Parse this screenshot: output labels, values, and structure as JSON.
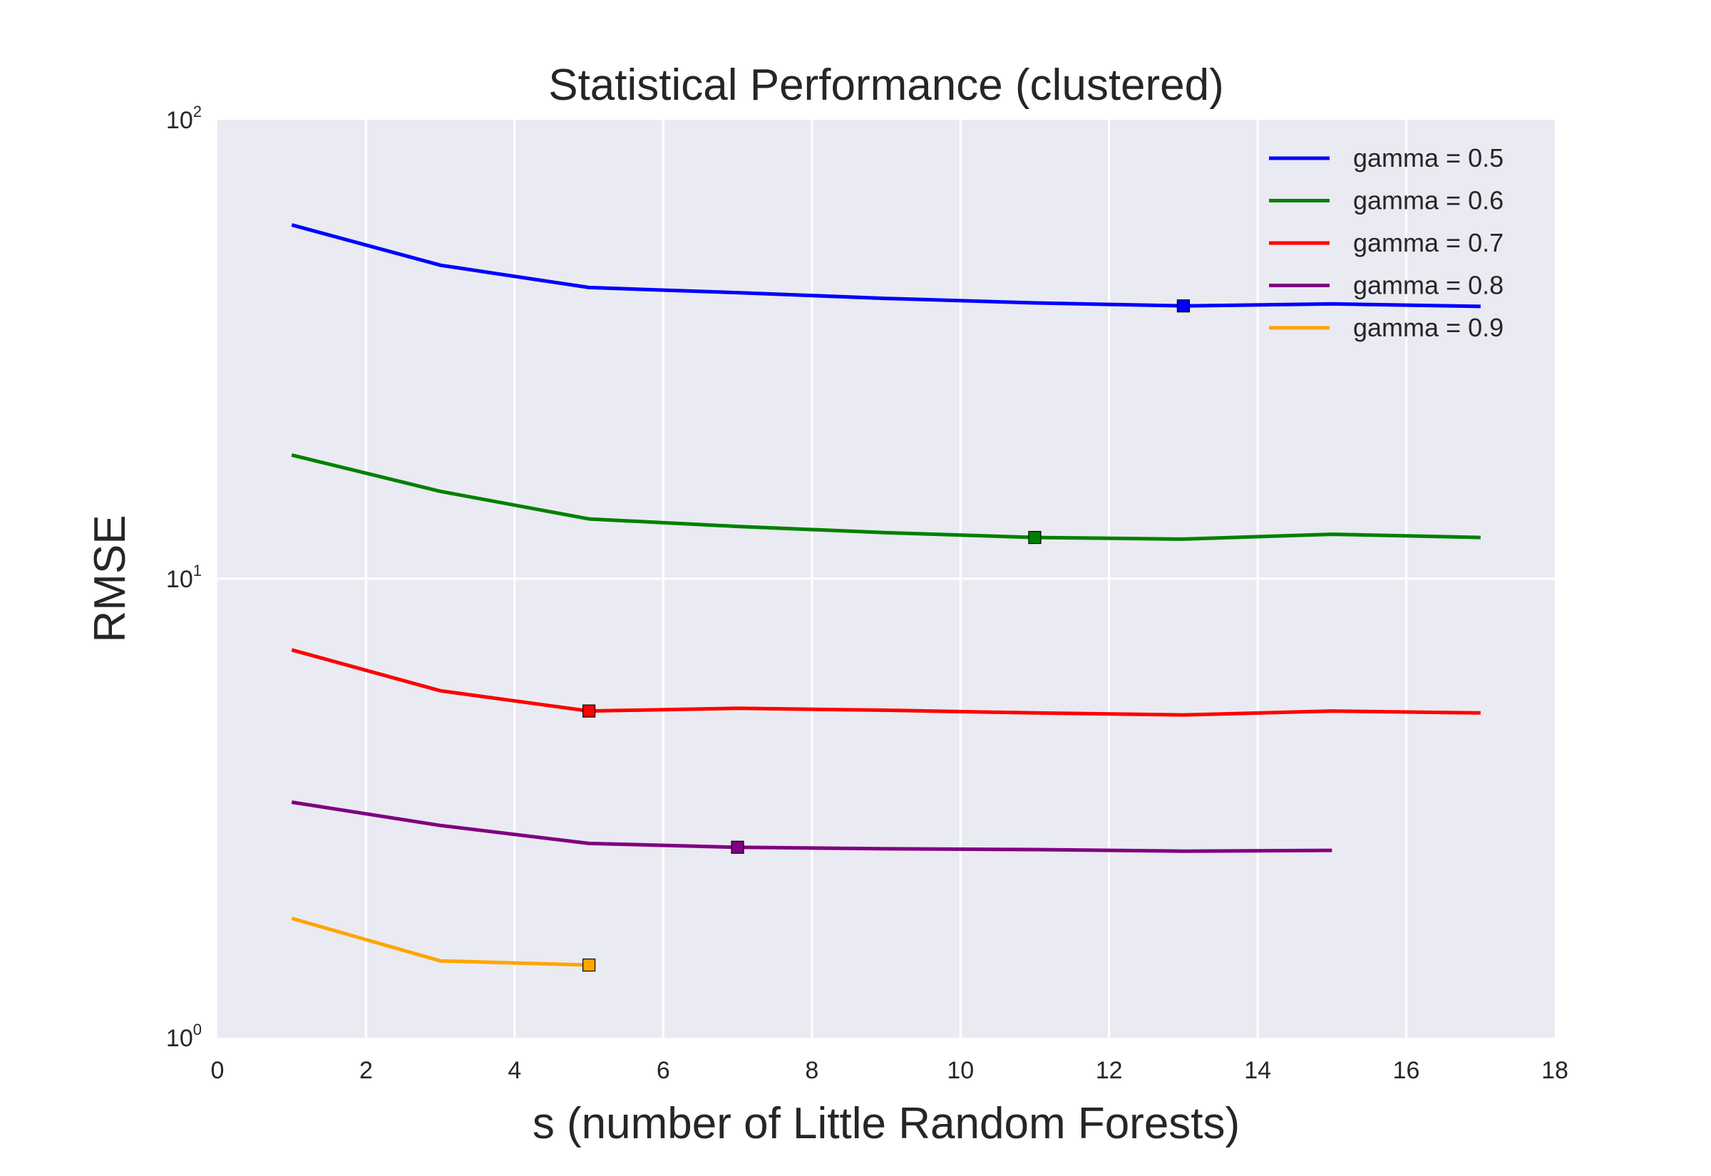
{
  "chart_data": {
    "type": "line",
    "title": "Statistical Performance (clustered)",
    "xlabel": "s (number of Little Random Forests)",
    "ylabel": "RMSE",
    "xlim": [
      0,
      18
    ],
    "ylim": [
      1,
      100
    ],
    "yscale": "log",
    "grid": true,
    "legend_position": "top-right",
    "x_ticks": [
      "0",
      "2",
      "4",
      "6",
      "8",
      "10",
      "12",
      "14",
      "16",
      "18"
    ],
    "y_ticks": [
      {
        "value": 1,
        "base": "10",
        "exp": "0"
      },
      {
        "value": 10,
        "base": "10",
        "exp": "1"
      },
      {
        "value": 100,
        "base": "10",
        "exp": "2"
      }
    ],
    "series": [
      {
        "name": "gamma = 0.5",
        "color": "#0000ff",
        "x": [
          1,
          3,
          5,
          7,
          9,
          11,
          13,
          15,
          17
        ],
        "y": [
          59,
          48.2,
          43.1,
          42.0,
          40.8,
          39.9,
          39.3,
          39.7,
          39.2
        ],
        "marker": {
          "x": 13,
          "y": 39.3
        }
      },
      {
        "name": "gamma = 0.6",
        "color": "#008000",
        "x": [
          1,
          3,
          5,
          7,
          9,
          11,
          13,
          15,
          17
        ],
        "y": [
          18.6,
          15.5,
          13.5,
          13.0,
          12.6,
          12.3,
          12.2,
          12.5,
          12.3
        ],
        "marker": {
          "x": 11,
          "y": 12.3
        }
      },
      {
        "name": "gamma = 0.7",
        "color": "#ff0000",
        "x": [
          1,
          3,
          5,
          7,
          9,
          11,
          13,
          15,
          17
        ],
        "y": [
          7.0,
          5.7,
          5.15,
          5.22,
          5.17,
          5.1,
          5.05,
          5.15,
          5.1
        ],
        "marker": {
          "x": 5,
          "y": 5.15
        }
      },
      {
        "name": "gamma = 0.8",
        "color": "#800080",
        "x": [
          1,
          3,
          5,
          7,
          9,
          11,
          13,
          15
        ],
        "y": [
          3.26,
          2.9,
          2.65,
          2.6,
          2.58,
          2.57,
          2.55,
          2.56
        ],
        "marker": {
          "x": 7,
          "y": 2.6
        }
      },
      {
        "name": "gamma = 0.9",
        "color": "#ffa500",
        "x": [
          1,
          3,
          5
        ],
        "y": [
          1.82,
          1.47,
          1.44
        ],
        "marker": {
          "x": 5,
          "y": 1.44
        }
      }
    ]
  }
}
